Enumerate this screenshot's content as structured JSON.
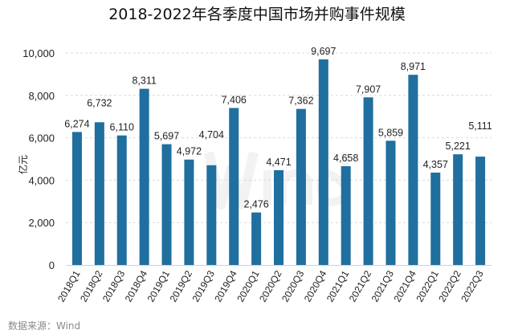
{
  "chart_data": {
    "type": "bar",
    "title": "2018-2022年各季度中国市场并购事件规模",
    "xlabel": "",
    "ylabel": "亿元",
    "ylim": [
      0,
      10000
    ],
    "yticks": [
      0,
      2000,
      4000,
      6000,
      8000,
      10000
    ],
    "ytick_labels": [
      "0",
      "2,000",
      "4,000",
      "6,000",
      "8,000",
      "10,000"
    ],
    "grid": true,
    "legend": "none",
    "categories": [
      "2018Q1",
      "2018Q2",
      "2018Q3",
      "2018Q4",
      "2019Q1",
      "2019Q2",
      "2019Q3",
      "2019Q4",
      "2020Q1",
      "2020Q2",
      "2020Q3",
      "2020Q4",
      "2021Q1",
      "2021Q2",
      "2021Q3",
      "2021Q4",
      "2022Q1",
      "2022Q2",
      "2022Q3"
    ],
    "values": [
      6274,
      6732,
      6110,
      8311,
      5697,
      4972,
      4704,
      7406,
      2476,
      4471,
      7362,
      9697,
      4658,
      7907,
      5859,
      8971,
      4357,
      5221,
      5111
    ],
    "data_labels": [
      "6,274",
      "6,732",
      "6,110",
      "8,311",
      "5,697",
      "4,972",
      "4,704",
      "7,406",
      "2,476",
      "4,471",
      "7,362",
      "9,697",
      "4,658",
      "7,907",
      "5,859",
      "8,971",
      "4,357",
      "5,221",
      "5,111"
    ],
    "bar_color": "#1f6f9f",
    "source": "数据来源：Wind",
    "watermark": "Wind"
  }
}
